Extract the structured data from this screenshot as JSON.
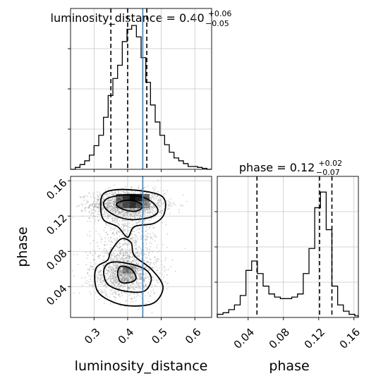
{
  "chart_data": {
    "type": "corner-plot",
    "parameters": [
      "luminosity_distance",
      "phase"
    ],
    "truth": {
      "luminosity_distance": 0.445
    },
    "grid": true,
    "panels": {
      "hist_ld": {
        "type": "histogram-step",
        "title_prefix": "luminosity_distance = 0.40",
        "title_plus": "+0.06",
        "title_minus": "−0.05",
        "xlim": [
          0.23,
          0.65
        ],
        "bin_edges": [
          0.23,
          0.244,
          0.258,
          0.272,
          0.286,
          0.3,
          0.314,
          0.328,
          0.342,
          0.356,
          0.37,
          0.384,
          0.398,
          0.412,
          0.426,
          0.44,
          0.454,
          0.468,
          0.482,
          0.496,
          0.51,
          0.524,
          0.538,
          0.552,
          0.566,
          0.58,
          0.594,
          0.608,
          0.622,
          0.636,
          0.65
        ],
        "counts": [
          0,
          2,
          5,
          9,
          15,
          25,
          36,
          55,
          78,
          96,
          110,
          135,
          148,
          152,
          140,
          118,
          92,
          68,
          50,
          36,
          26,
          18,
          12,
          9,
          6,
          3,
          3,
          2,
          1,
          0
        ],
        "ymax": 170,
        "quantiles": [
          0.35,
          0.4,
          0.457
        ]
      },
      "scatter_2d": {
        "type": "2d-density",
        "xlim": [
          0.23,
          0.65
        ],
        "ylim": [
          0.005,
          0.165
        ],
        "xticks": [
          0.3,
          0.4,
          0.5,
          0.6
        ],
        "xtick_labels": [
          "0.3",
          "0.4",
          "0.5",
          "0.6"
        ],
        "yticks": [
          0.04,
          0.08,
          0.12,
          0.16
        ],
        "ytick_labels": [
          "0.04",
          "0.08",
          "0.12",
          "0.16"
        ],
        "xlabel": "luminosity_distance",
        "ylabel": "phase",
        "modes": [
          {
            "center": [
              0.4,
              0.133
            ],
            "spread": [
              0.055,
              0.008
            ]
          },
          {
            "center": [
              0.39,
              0.055
            ],
            "spread": [
              0.05,
              0.013
            ]
          }
        ],
        "contours": [
          [
            [
              0.37,
              0.131
            ],
            [
              0.4,
              0.126
            ],
            [
              0.43,
              0.126
            ],
            [
              0.444,
              0.131
            ],
            [
              0.43,
              0.136
            ],
            [
              0.4,
              0.138
            ],
            [
              0.37,
              0.135
            ]
          ],
          [
            [
              0.33,
              0.131
            ],
            [
              0.36,
              0.121
            ],
            [
              0.41,
              0.116
            ],
            [
              0.47,
              0.119
            ],
            [
              0.49,
              0.127
            ],
            [
              0.46,
              0.139
            ],
            [
              0.4,
              0.144
            ],
            [
              0.34,
              0.14
            ]
          ],
          [
            [
              0.32,
              0.128
            ],
            [
              0.33,
              0.115
            ],
            [
              0.37,
              0.108
            ],
            [
              0.4,
              0.096
            ],
            [
              0.42,
              0.108
            ],
            [
              0.48,
              0.112
            ],
            [
              0.51,
              0.124
            ],
            [
              0.5,
              0.143
            ],
            [
              0.4,
              0.15
            ],
            [
              0.33,
              0.146
            ]
          ],
          [
            [
              0.37,
              0.055
            ],
            [
              0.38,
              0.045
            ],
            [
              0.41,
              0.045
            ],
            [
              0.425,
              0.05
            ],
            [
              0.41,
              0.06
            ],
            [
              0.38,
              0.063
            ]
          ],
          [
            [
              0.33,
              0.06
            ],
            [
              0.34,
              0.043
            ],
            [
              0.39,
              0.035
            ],
            [
              0.45,
              0.035
            ],
            [
              0.47,
              0.05
            ],
            [
              0.44,
              0.062
            ],
            [
              0.36,
              0.068
            ]
          ],
          [
            [
              0.305,
              0.06
            ],
            [
              0.31,
              0.035
            ],
            [
              0.36,
              0.022
            ],
            [
              0.42,
              0.018
            ],
            [
              0.48,
              0.022
            ],
            [
              0.505,
              0.04
            ],
            [
              0.47,
              0.06
            ],
            [
              0.42,
              0.075
            ],
            [
              0.41,
              0.09
            ],
            [
              0.38,
              0.094
            ],
            [
              0.35,
              0.08
            ],
            [
              0.34,
              0.07
            ]
          ]
        ]
      },
      "hist_phase": {
        "type": "histogram-step",
        "title_prefix": "phase = 0.12",
        "title_plus": "+0.02",
        "title_minus": "−0.07",
        "xlim": [
          0.005,
          0.165
        ],
        "xticks": [
          0.04,
          0.08,
          0.12,
          0.16
        ],
        "xtick_labels": [
          "0.04",
          "0.08",
          "0.12",
          "0.16"
        ],
        "xlabel": "phase",
        "bin_edges": [
          0.005,
          0.0115,
          0.018,
          0.0245,
          0.031,
          0.0375,
          0.044,
          0.0505,
          0.057,
          0.0635,
          0.07,
          0.0765,
          0.083,
          0.0895,
          0.096,
          0.1025,
          0.109,
          0.1155,
          0.122,
          0.1285,
          0.135,
          0.1415,
          0.148,
          0.1545,
          0.161,
          0.165
        ],
        "counts": [
          2,
          3,
          5,
          8,
          14,
          30,
          36,
          28,
          20,
          15,
          13,
          12,
          12,
          13,
          15,
          28,
          44,
          70,
          80,
          56,
          20,
          8,
          4,
          2,
          1
        ],
        "ymax": 90,
        "quantiles": [
          0.05,
          0.121,
          0.135
        ]
      }
    }
  }
}
